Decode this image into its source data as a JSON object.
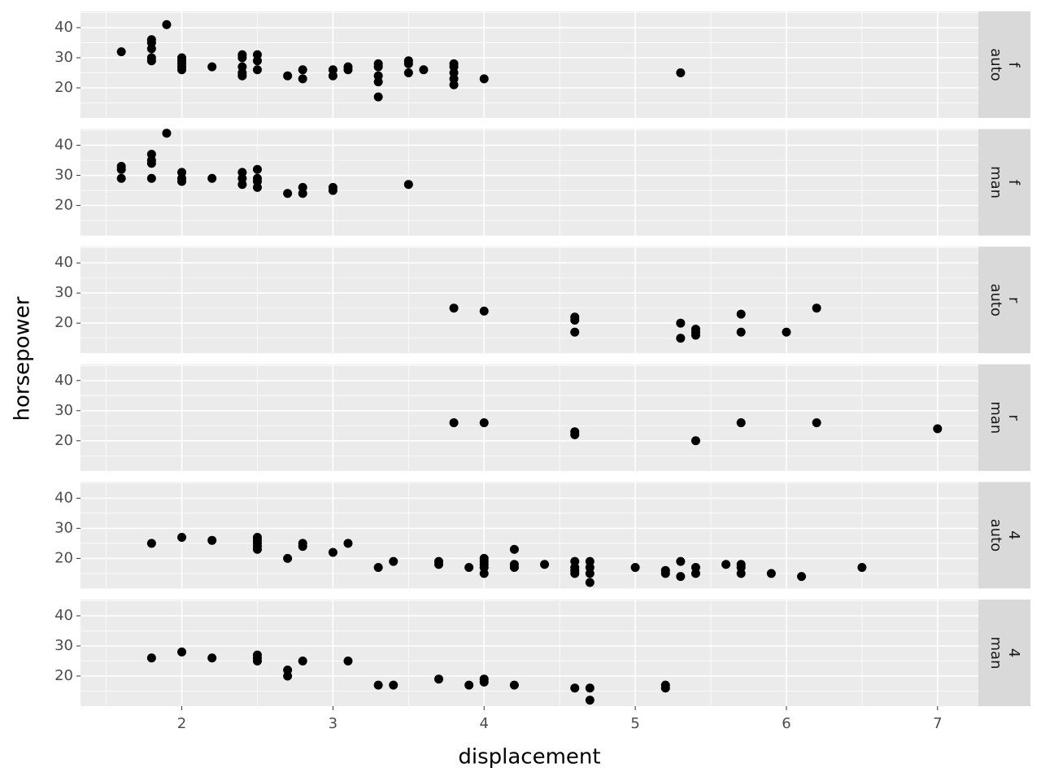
{
  "axis_titles": {
    "x": "displacement",
    "y": "horsepower"
  },
  "chart_data": [
    {
      "type": "scatter",
      "strip": [
        "f",
        "auto"
      ],
      "color": "#000000",
      "grid": true,
      "xlim": [
        1.33,
        7.27
      ],
      "ylim": [
        10,
        45.4
      ],
      "xticks": [
        2,
        3,
        4,
        5,
        6,
        7
      ],
      "yticks": [
        20,
        30,
        40
      ],
      "x": [
        1.6,
        1.8,
        1.8,
        1.8,
        1.8,
        1.8,
        1.9,
        2,
        2,
        2,
        2,
        2,
        2.2,
        2.4,
        2.4,
        2.4,
        2.4,
        2.4,
        2.5,
        2.5,
        2.5,
        2.7,
        2.8,
        2.8,
        3,
        3,
        3.1,
        3.1,
        3.3,
        3.3,
        3.3,
        3.3,
        3.3,
        3.5,
        3.5,
        3.5,
        3.6,
        3.8,
        3.8,
        3.8,
        3.8,
        3.8,
        4,
        5.3
      ],
      "y": [
        32,
        36,
        35,
        33,
        30,
        29,
        41,
        30,
        29,
        28,
        27,
        26,
        27,
        31,
        30,
        27,
        25,
        24,
        31,
        29,
        26,
        24,
        26,
        23,
        26,
        24,
        27,
        26,
        28,
        27,
        24,
        22,
        17,
        29,
        28,
        25,
        26,
        28,
        27,
        25,
        23,
        21,
        23,
        25
      ]
    },
    {
      "type": "scatter",
      "strip": [
        "f",
        "man"
      ],
      "color": "#000000",
      "grid": true,
      "xlim": [
        1.33,
        7.27
      ],
      "ylim": [
        10,
        45.4
      ],
      "xticks": [
        2,
        3,
        4,
        5,
        6,
        7
      ],
      "yticks": [
        20,
        30,
        40
      ],
      "x": [
        1.6,
        1.6,
        1.6,
        1.8,
        1.8,
        1.8,
        1.8,
        1.9,
        2,
        2,
        2,
        2.2,
        2.4,
        2.4,
        2.4,
        2.5,
        2.5,
        2.5,
        2.5,
        2.7,
        2.8,
        2.8,
        3,
        3,
        3.5
      ],
      "y": [
        33,
        32,
        29,
        37,
        35,
        34,
        29,
        44,
        31,
        29,
        28,
        29,
        31,
        29,
        27,
        32,
        29,
        28,
        26,
        24,
        26,
        24,
        26,
        25,
        27
      ]
    },
    {
      "type": "scatter",
      "strip": [
        "r",
        "auto"
      ],
      "color": "#000000",
      "grid": true,
      "xlim": [
        1.33,
        7.27
      ],
      "ylim": [
        10,
        45.4
      ],
      "xticks": [
        2,
        3,
        4,
        5,
        6,
        7
      ],
      "yticks": [
        20,
        30,
        40
      ],
      "x": [
        3.8,
        4,
        4.6,
        4.6,
        4.6,
        5.3,
        5.3,
        5.4,
        5.4,
        5.4,
        5.7,
        5.7,
        6,
        6.2
      ],
      "y": [
        25,
        24,
        22,
        21,
        17,
        20,
        15,
        18,
        17,
        16,
        23,
        17,
        17,
        25
      ]
    },
    {
      "type": "scatter",
      "strip": [
        "r",
        "man"
      ],
      "color": "#000000",
      "grid": true,
      "xlim": [
        1.33,
        7.27
      ],
      "ylim": [
        10,
        45.4
      ],
      "xticks": [
        2,
        3,
        4,
        5,
        6,
        7
      ],
      "yticks": [
        20,
        30,
        40
      ],
      "x": [
        3.8,
        4,
        4.6,
        4.6,
        5.4,
        5.7,
        6.2,
        7
      ],
      "y": [
        26,
        26,
        23,
        22,
        20,
        26,
        26,
        24
      ]
    },
    {
      "type": "scatter",
      "strip": [
        "4",
        "auto"
      ],
      "color": "#000000",
      "grid": true,
      "xlim": [
        1.33,
        7.27
      ],
      "ylim": [
        10,
        45.4
      ],
      "xticks": [
        2,
        3,
        4,
        5,
        6,
        7
      ],
      "yticks": [
        20,
        30,
        40
      ],
      "x": [
        1.8,
        2,
        2.2,
        2.5,
        2.5,
        2.5,
        2.5,
        2.5,
        2.7,
        2.8,
        2.8,
        3,
        3.1,
        3.3,
        3.4,
        3.7,
        3.7,
        3.9,
        4,
        4,
        4,
        4,
        4,
        4.2,
        4.2,
        4.2,
        4.4,
        4.6,
        4.6,
        4.6,
        4.6,
        4.7,
        4.7,
        4.7,
        4.7,
        5,
        5.2,
        5.2,
        5.3,
        5.3,
        5.4,
        5.4,
        5.6,
        5.7,
        5.7,
        5.7,
        5.9,
        6.1,
        6.5
      ],
      "y": [
        25,
        27,
        26,
        27,
        26,
        25,
        24,
        23,
        20,
        25,
        24,
        22,
        25,
        17,
        19,
        19,
        18,
        17,
        20,
        19,
        18,
        17,
        15,
        23,
        18,
        17,
        18,
        19,
        17,
        16,
        15,
        19,
        17,
        15,
        12,
        17,
        16,
        15,
        19,
        14,
        17,
        15,
        18,
        18,
        17,
        15,
        15,
        14,
        17
      ]
    },
    {
      "type": "scatter",
      "strip": [
        "4",
        "man"
      ],
      "color": "#000000",
      "grid": true,
      "xlim": [
        1.33,
        7.27
      ],
      "ylim": [
        10,
        45.4
      ],
      "xticks": [
        2,
        3,
        4,
        5,
        6,
        7
      ],
      "yticks": [
        20,
        30,
        40
      ],
      "x": [
        1.8,
        2,
        2.2,
        2.5,
        2.5,
        2.5,
        2.7,
        2.7,
        2.8,
        3.1,
        3.3,
        3.4,
        3.7,
        3.9,
        4,
        4,
        4.2,
        4.6,
        4.7,
        4.7,
        5.2,
        5.2
      ],
      "y": [
        26,
        28,
        26,
        27,
        26,
        25,
        22,
        20,
        25,
        25,
        17,
        17,
        19,
        17,
        19,
        18,
        17,
        16,
        16,
        12,
        17,
        16
      ]
    }
  ]
}
